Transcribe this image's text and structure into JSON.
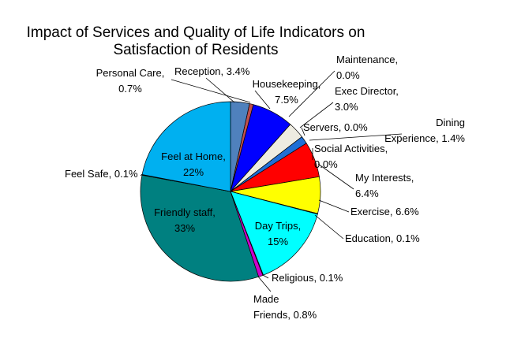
{
  "chart_data": {
    "type": "pie",
    "title": "Impact of Services and Quality of Life Indicators on Satisfaction of Residents",
    "title_lines": [
      "Impact of Services and Quality of Life Indicators on",
      "Satisfaction of Residents"
    ],
    "slices": [
      {
        "name": "Reception",
        "value": 3.4,
        "display": "3.4%",
        "color": "#4F81BD",
        "label_lines": [
          "Reception, 3.4%"
        ]
      },
      {
        "name": "Personal Care",
        "value": 0.7,
        "display": "0.7%",
        "color": "#C0504D",
        "label_lines": [
          "Personal Care,",
          "0.7%"
        ]
      },
      {
        "name": "Housekeeping",
        "value": 7.5,
        "display": "7.5%",
        "color": "#0000FF",
        "label_lines": [
          "Housekeeping,",
          "7.5%"
        ]
      },
      {
        "name": "Maintenance",
        "value": 0.0,
        "display": "0.0%",
        "color": "#D9D9D9",
        "label_lines": [
          "Maintenance,",
          "0.0%"
        ]
      },
      {
        "name": "Exec Director",
        "value": 3.0,
        "display": "3.0%",
        "color": "#EEECE1",
        "label_lines": [
          "Exec Director,",
          "3.0%"
        ]
      },
      {
        "name": "Servers",
        "value": 0.0,
        "display": "0.0%",
        "color": "#FFFFFF",
        "label_lines": [
          "Servers, 0.0%"
        ]
      },
      {
        "name": "Dining Experience",
        "value": 1.4,
        "display": "1.4%",
        "color": "#1F6FD6",
        "label_lines": [
          "Dining",
          "Experience, 1.4%"
        ]
      },
      {
        "name": "Social Activities",
        "value": 0.0,
        "display": "0.0%",
        "color": "#FF0000",
        "label_lines": [
          "Social Activities,",
          "0.0%"
        ]
      },
      {
        "name": "My Interests",
        "value": 6.4,
        "display": "6.4%",
        "color": "#FF0000",
        "label_lines": [
          "My Interests,",
          "6.4%"
        ]
      },
      {
        "name": "Exercise",
        "value": 6.6,
        "display": "6.6%",
        "color": "#FFFF00",
        "label_lines": [
          "Exercise, 6.6%"
        ]
      },
      {
        "name": "Education",
        "value": 0.1,
        "display": "0.1%",
        "color": "#FFFF99",
        "label_lines": [
          "Education, 0.1%"
        ]
      },
      {
        "name": "Day Trips",
        "value": 15,
        "display": "15%",
        "color": "#00FFFF",
        "label_lines": [
          "Day Trips,",
          "15%"
        ]
      },
      {
        "name": "Religious",
        "value": 0.1,
        "display": "0.1%",
        "color": "#7F7F7F",
        "label_lines": [
          "Religious, 0.1%"
        ]
      },
      {
        "name": "Made Friends",
        "value": 0.8,
        "display": "0.8%",
        "color": "#CC00CC",
        "label_lines": [
          "Made",
          "Friends, 0.8%"
        ]
      },
      {
        "name": "Friendly staff",
        "value": 33,
        "display": "33%",
        "color": "#008080",
        "label_lines": [
          "Friendly staff,",
          "33%"
        ]
      },
      {
        "name": "Feel Safe",
        "value": 0.1,
        "display": "0.1%",
        "color": "#9BBB59",
        "label_lines": [
          "Feel Safe, 0.1%"
        ]
      },
      {
        "name": "Feel at Home",
        "value": 22,
        "display": "22%",
        "color": "#00B0F0",
        "label_lines": [
          "Feel at Home,",
          "22%"
        ]
      }
    ]
  }
}
